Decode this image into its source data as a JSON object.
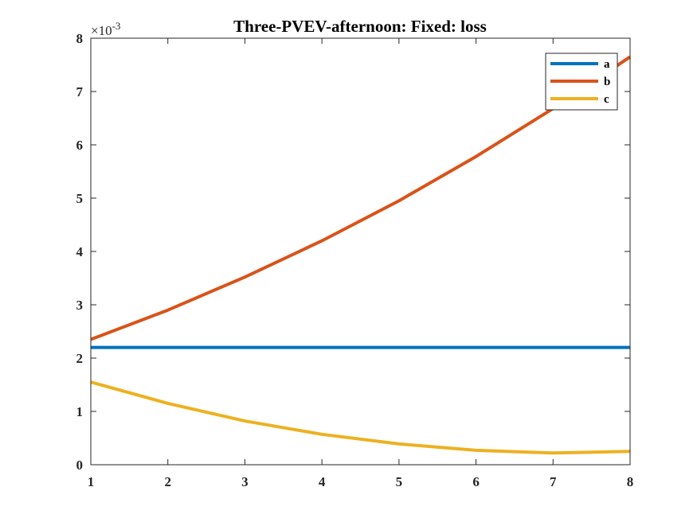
{
  "chart_data": {
    "type": "line",
    "title": "Three-PVEV-afternoon: Fixed: loss",
    "xlabel": "",
    "ylabel": "",
    "y_exponent_label": "×10",
    "y_exponent_power": "-3",
    "xlim": [
      1,
      8
    ],
    "ylim": [
      0,
      8
    ],
    "x_ticks": [
      1,
      2,
      3,
      4,
      5,
      6,
      7,
      8
    ],
    "y_ticks": [
      0,
      1,
      2,
      3,
      4,
      5,
      6,
      7,
      8
    ],
    "x_tick_labels": [
      "1",
      "2",
      "3",
      "4",
      "5",
      "6",
      "7",
      "8"
    ],
    "y_tick_labels": [
      "0",
      "1",
      "2",
      "3",
      "4",
      "5",
      "6",
      "7",
      "8"
    ],
    "grid": false,
    "legend_position": "top-right",
    "x": [
      1,
      2,
      3,
      4,
      5,
      6,
      7,
      8
    ],
    "series": [
      {
        "name": "a",
        "color": "#0072BD",
        "values": [
          2.2,
          2.2,
          2.2,
          2.2,
          2.2,
          2.2,
          2.2,
          2.2
        ]
      },
      {
        "name": "b",
        "color": "#D95319",
        "values": [
          2.35,
          2.9,
          3.52,
          4.2,
          4.95,
          5.78,
          6.68,
          7.65
        ]
      },
      {
        "name": "c",
        "color": "#EDB120",
        "values": [
          1.55,
          1.15,
          0.82,
          0.57,
          0.39,
          0.27,
          0.22,
          0.25
        ]
      }
    ]
  }
}
